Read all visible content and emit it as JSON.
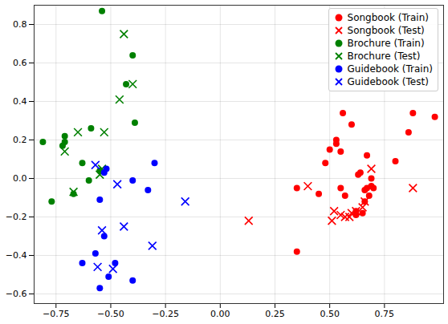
{
  "chart_data": {
    "type": "scatter",
    "grid": true,
    "legend": "upper right",
    "xlim": [
      -0.85,
      1.02
    ],
    "ylim": [
      -0.65,
      0.9
    ],
    "xticks": [
      {
        "value": -0.75,
        "label": "−0.75"
      },
      {
        "value": -0.5,
        "label": "−0.50"
      },
      {
        "value": -0.25,
        "label": "−0.25"
      },
      {
        "value": 0,
        "label": "0.00"
      },
      {
        "value": 0.25,
        "label": "0.25"
      },
      {
        "value": 0.5,
        "label": "0.50"
      },
      {
        "value": 0.75,
        "label": "0.75"
      }
    ],
    "yticks": [
      {
        "value": -0.6,
        "label": "−0.6"
      },
      {
        "value": -0.4,
        "label": "−0.4"
      },
      {
        "value": -0.2,
        "label": "−0.2"
      },
      {
        "value": 0,
        "label": "0.0"
      },
      {
        "value": 0.2,
        "label": "0.2"
      },
      {
        "value": 0.4,
        "label": "0.4"
      },
      {
        "value": 0.6,
        "label": "0.6"
      },
      {
        "value": 0.8,
        "label": "0.8"
      }
    ],
    "series": [
      {
        "name": "Songbook (Train)",
        "color": "#ff0000",
        "marker": "circle",
        "values": [
          [
            0.35,
            -0.05
          ],
          [
            0.35,
            -0.38
          ],
          [
            0.45,
            -0.08
          ],
          [
            0.48,
            0.08
          ],
          [
            0.5,
            0.15
          ],
          [
            0.53,
            0.2
          ],
          [
            0.53,
            0.18
          ],
          [
            0.55,
            0.14
          ],
          [
            0.56,
            0.34
          ],
          [
            0.55,
            -0.05
          ],
          [
            0.57,
            -0.09
          ],
          [
            0.6,
            0.28
          ],
          [
            0.62,
            -0.17
          ],
          [
            0.63,
            0.02
          ],
          [
            0.64,
            0.03
          ],
          [
            0.66,
            -0.06
          ],
          [
            0.67,
            0.12
          ],
          [
            0.68,
            -0.09
          ],
          [
            0.69,
            -0.04
          ],
          [
            0.7,
            -0.05
          ],
          [
            0.67,
            -0.05
          ],
          [
            0.65,
            -0.18
          ],
          [
            0.62,
            -0.19
          ],
          [
            0.8,
            0.09
          ],
          [
            0.86,
            0.24
          ],
          [
            0.88,
            0.34
          ],
          [
            0.98,
            0.32
          ],
          [
            0.69,
            0.0
          ],
          [
            0.66,
            -0.12
          ]
        ]
      },
      {
        "name": "Songbook (Test)",
        "color": "#ff0000",
        "marker": "x",
        "values": [
          [
            0.13,
            -0.22
          ],
          [
            0.4,
            -0.04
          ],
          [
            0.51,
            -0.22
          ],
          [
            0.52,
            -0.17
          ],
          [
            0.55,
            -0.19
          ],
          [
            0.57,
            -0.2
          ],
          [
            0.59,
            -0.2
          ],
          [
            0.6,
            -0.18
          ],
          [
            0.62,
            -0.17
          ],
          [
            0.65,
            -0.15
          ],
          [
            0.66,
            -0.12
          ],
          [
            0.69,
            0.05
          ],
          [
            0.88,
            -0.05
          ]
        ]
      },
      {
        "name": "Brochure (Train)",
        "color": "#008000",
        "marker": "circle",
        "values": [
          [
            -0.54,
            0.87
          ],
          [
            -0.4,
            0.64
          ],
          [
            -0.43,
            0.49
          ],
          [
            -0.39,
            0.29
          ],
          [
            -0.59,
            0.26
          ],
          [
            -0.63,
            0.08
          ],
          [
            -0.71,
            0.22
          ],
          [
            -0.72,
            0.17
          ],
          [
            -0.81,
            0.19
          ],
          [
            -0.77,
            -0.12
          ],
          [
            -0.67,
            -0.08
          ],
          [
            -0.6,
            -0.01
          ],
          [
            -0.55,
            0.04
          ],
          [
            -0.71,
            0.19
          ]
        ]
      },
      {
        "name": "Brochure (Test)",
        "color": "#008000",
        "marker": "x",
        "values": [
          [
            -0.44,
            0.75
          ],
          [
            -0.4,
            0.49
          ],
          [
            -0.46,
            0.41
          ],
          [
            -0.53,
            0.24
          ],
          [
            -0.65,
            0.24
          ],
          [
            -0.71,
            0.14
          ],
          [
            -0.67,
            -0.07
          ],
          [
            -0.55,
            0.02
          ],
          [
            -0.54,
            0.05
          ]
        ]
      },
      {
        "name": "Guidebook (Train)",
        "color": "#0000ff",
        "marker": "circle",
        "values": [
          [
            -0.52,
            0.05
          ],
          [
            -0.4,
            -0.01
          ],
          [
            -0.3,
            0.08
          ],
          [
            -0.33,
            -0.06
          ],
          [
            -0.55,
            -0.11
          ],
          [
            -0.53,
            -0.3
          ],
          [
            -0.63,
            -0.44
          ],
          [
            -0.57,
            -0.39
          ],
          [
            -0.51,
            -0.51
          ],
          [
            -0.4,
            -0.53
          ],
          [
            -0.55,
            -0.57
          ],
          [
            -0.48,
            -0.44
          ],
          [
            -0.53,
            0.03
          ]
        ]
      },
      {
        "name": "Guidebook (Test)",
        "color": "#0000ff",
        "marker": "x",
        "values": [
          [
            -0.57,
            0.07
          ],
          [
            -0.47,
            -0.03
          ],
          [
            -0.16,
            -0.12
          ],
          [
            -0.44,
            -0.25
          ],
          [
            -0.54,
            -0.27
          ],
          [
            -0.31,
            -0.35
          ],
          [
            -0.49,
            -0.47
          ],
          [
            -0.56,
            -0.46
          ]
        ]
      }
    ]
  }
}
